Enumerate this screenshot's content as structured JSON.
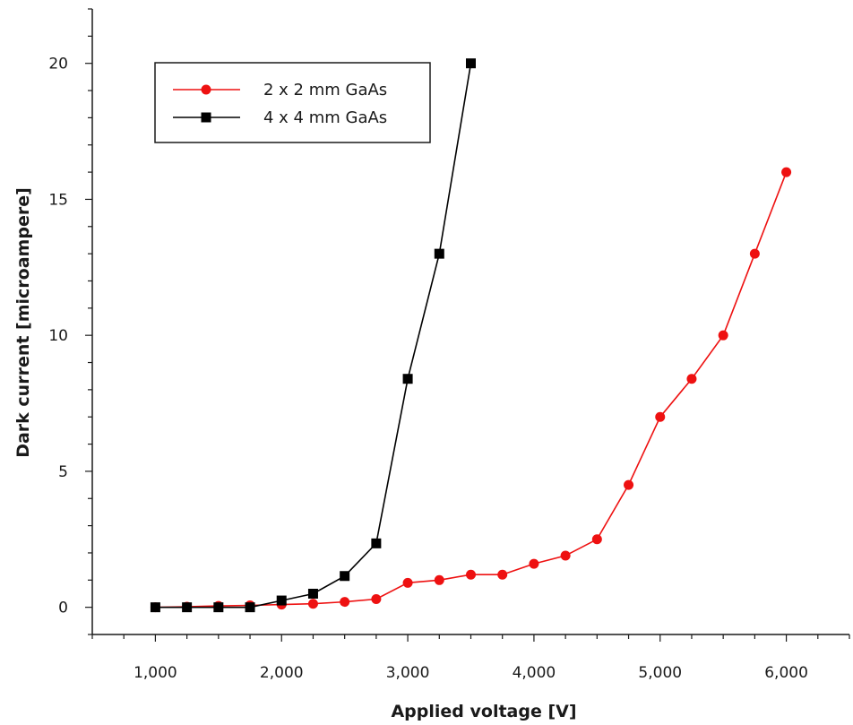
{
  "chart_data": {
    "type": "line",
    "title": "",
    "xlabel": "Applied voltage [V]",
    "ylabel": "Dark current [microampere]",
    "xlim": [
      500,
      6500
    ],
    "ylim": [
      -1,
      22
    ],
    "x_ticks": [
      1000,
      2000,
      3000,
      4000,
      5000,
      6000
    ],
    "x_tick_labels": [
      "1,000",
      "2,000",
      "3,000",
      "4,000",
      "5,000",
      "6,000"
    ],
    "y_ticks": [
      0,
      5,
      10,
      15,
      20
    ],
    "y_tick_labels": [
      "0",
      "5",
      "10",
      "15",
      "20"
    ],
    "grid": false,
    "legend_position": "top-left",
    "series": [
      {
        "name": "2 x 2 mm GaAs",
        "color": "#ee1111",
        "marker": "circle",
        "x": [
          1000,
          1250,
          1500,
          1750,
          2000,
          2250,
          2500,
          2750,
          3000,
          3250,
          3500,
          3750,
          4000,
          4250,
          4500,
          4750,
          5000,
          5250,
          5500,
          5750,
          6000
        ],
        "y": [
          0,
          0.02,
          0.05,
          0.07,
          0.1,
          0.13,
          0.2,
          0.3,
          0.9,
          1.0,
          1.2,
          1.2,
          1.6,
          1.9,
          2.5,
          4.5,
          7.0,
          8.4,
          10.0,
          13.0,
          16.0
        ]
      },
      {
        "name": "4 x 4 mm GaAs",
        "color": "#000000",
        "marker": "square",
        "x": [
          1000,
          1250,
          1500,
          1750,
          2000,
          2250,
          2500,
          2750,
          3000,
          3250,
          3500
        ],
        "y": [
          0,
          0,
          0,
          0,
          0.25,
          0.5,
          1.15,
          2.35,
          8.4,
          13.0,
          20.0
        ]
      }
    ]
  }
}
